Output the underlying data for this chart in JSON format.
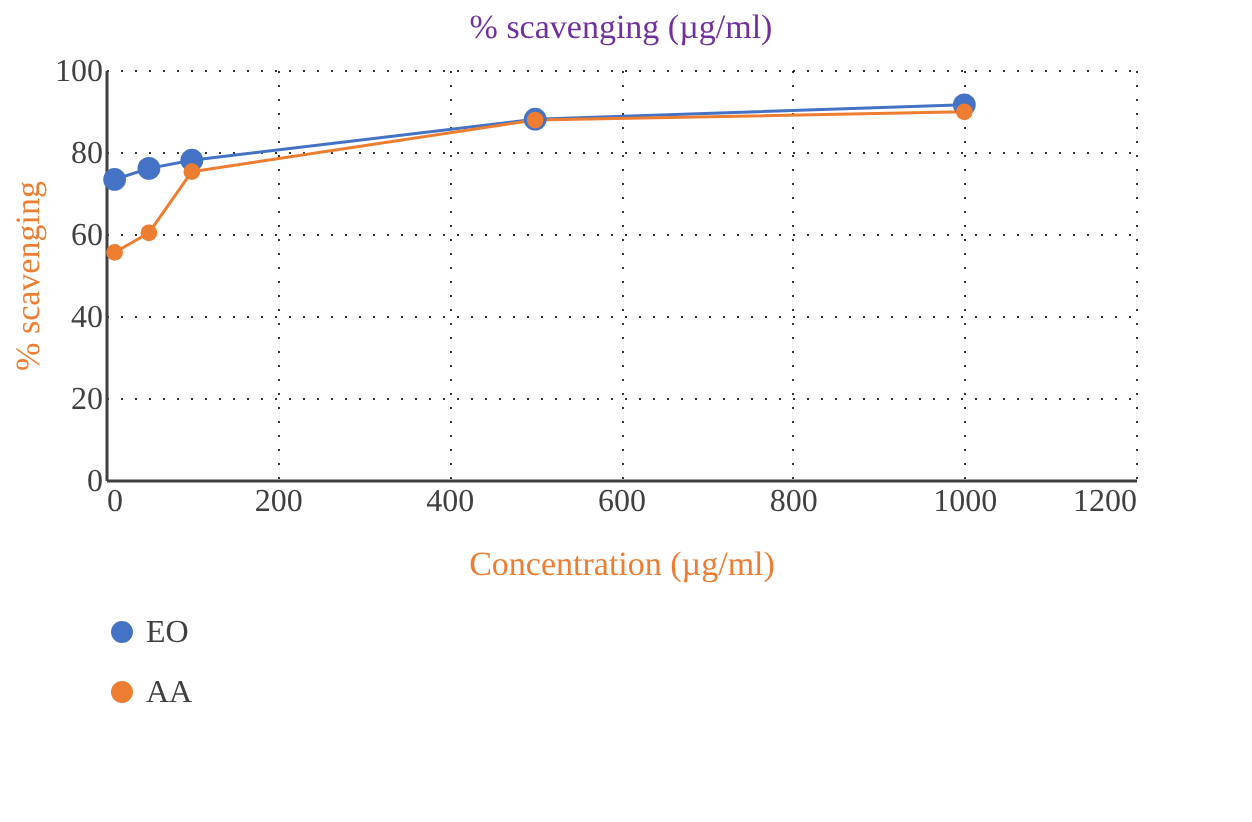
{
  "chart_data": {
    "type": "line",
    "title": "% scavenging (µg/ml)",
    "xlabel": "Concentration (µg/ml)",
    "ylabel": "% scavenging",
    "x": [
      10,
      50,
      100,
      500,
      1000
    ],
    "series": [
      {
        "name": "EO",
        "color": "#4472c4",
        "values": [
          73.3,
          76,
          78,
          88,
          91.5
        ]
      },
      {
        "name": "AA",
        "color": "#ed7d31",
        "values": [
          55.5,
          60.3,
          75.2,
          87.8,
          89.8
        ]
      }
    ],
    "xlim": [
      0,
      1200
    ],
    "xticks": [
      0,
      200,
      400,
      600,
      800,
      1000,
      1200
    ],
    "ylim": [
      0,
      100
    ],
    "yticks": [
      0,
      20,
      40,
      60,
      80,
      100
    ],
    "grid": true,
    "legend": "bottom",
    "marker": "circle",
    "line_style": "solid"
  }
}
